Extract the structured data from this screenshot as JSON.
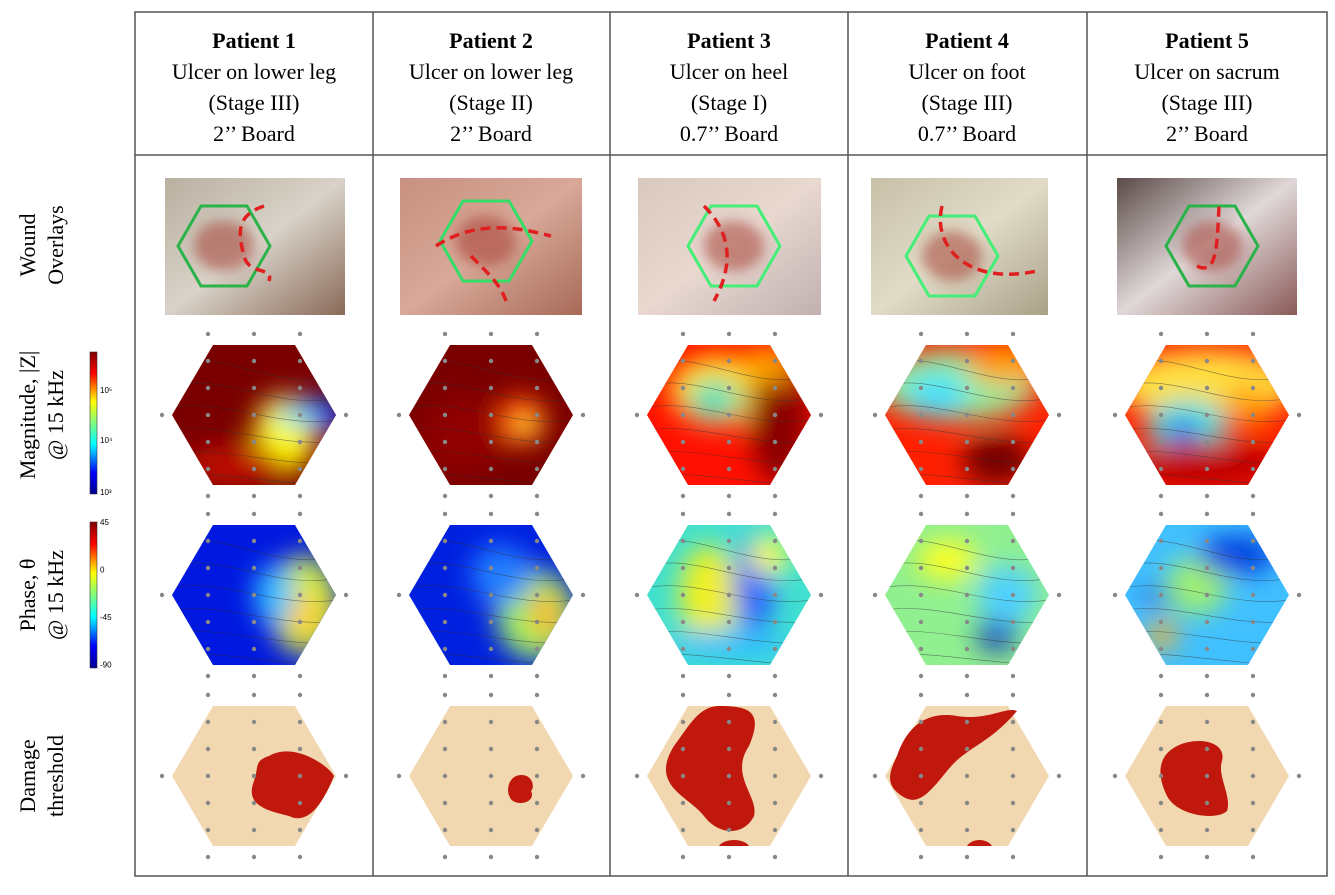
{
  "columns": [
    {
      "title": "Patient 1",
      "lines": [
        "Ulcer on lower leg",
        "(Stage III)",
        "2’’ Board"
      ]
    },
    {
      "title": "Patient 2",
      "lines": [
        "Ulcer on lower leg",
        "(Stage II)",
        "2’’ Board"
      ]
    },
    {
      "title": "Patient 3",
      "lines": [
        "Ulcer on heel",
        "(Stage I)",
        "0.7’’ Board"
      ]
    },
    {
      "title": "Patient 4",
      "lines": [
        "Ulcer on foot",
        "(Stage III)",
        "0.7’’ Board"
      ]
    },
    {
      "title": "Patient 5",
      "lines": [
        "Ulcer on sacrum",
        "(Stage III)",
        "2’’ Board"
      ]
    }
  ],
  "row_labels": [
    [
      "Wound",
      "Overlays"
    ],
    [
      "Magnitude, |Z|",
      "@ 15 kHz"
    ],
    [
      "Phase, θ",
      "@ 15 kHz"
    ],
    [
      "Damage",
      "threshold"
    ]
  ],
  "magnitude_colorbar": {
    "ticks": [
      "10⁵",
      "10⁴",
      "10³"
    ]
  },
  "phase_colorbar": {
    "ticks": [
      "45",
      "0",
      "-45",
      "-90"
    ]
  }
}
